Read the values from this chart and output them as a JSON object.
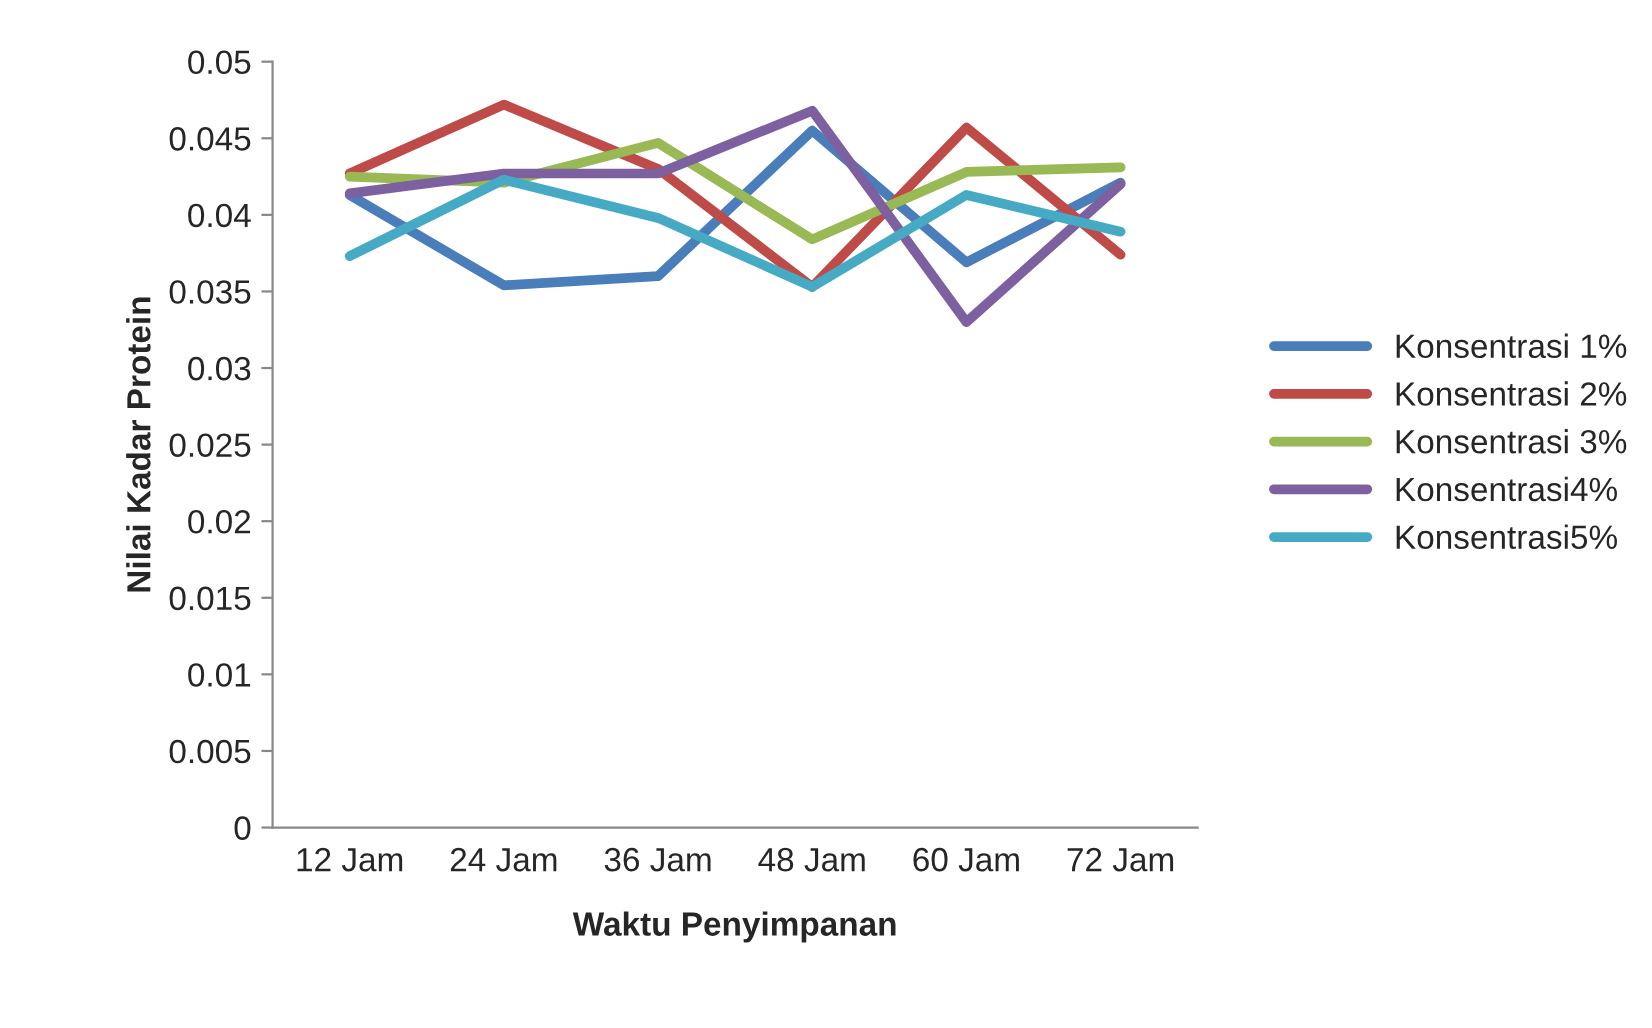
{
  "chart_data": {
    "type": "line",
    "xlabel": "Waktu Penyimpanan",
    "ylabel": "Nilai Kadar Protein",
    "categories": [
      "12 Jam",
      "24 Jam",
      "36 Jam",
      "48 Jam",
      "60 Jam",
      "72 Jam"
    ],
    "series": [
      {
        "name": "Konsentrasi 1%",
        "color": "#4a7ebb",
        "values": [
          0.0413,
          0.0354,
          0.036,
          0.0455,
          0.0369,
          0.0421
        ]
      },
      {
        "name": "Konsentrasi 2%",
        "color": "#be4b48",
        "values": [
          0.0427,
          0.0472,
          0.043,
          0.0353,
          0.0457,
          0.0374
        ]
      },
      {
        "name": "Konsentrasi 3%",
        "color": "#98b954",
        "values": [
          0.0425,
          0.0421,
          0.0447,
          0.0384,
          0.0428,
          0.0431
        ]
      },
      {
        "name": "Konsentrasi4%",
        "color": "#7d60a0",
        "values": [
          0.0414,
          0.0427,
          0.0427,
          0.0468,
          0.033,
          0.042
        ]
      },
      {
        "name": "Konsentrasi5%",
        "color": "#46aac5",
        "values": [
          0.0373,
          0.0423,
          0.0398,
          0.0353,
          0.0413,
          0.0389
        ]
      }
    ],
    "ylim": [
      0,
      0.05
    ],
    "yticks": [
      0,
      {
        "value": 0.005,
        "label": "0.005"
      },
      {
        "value": 0.01,
        "label": "0.01"
      },
      {
        "value": 0.015,
        "label": "0.015"
      },
      {
        "value": 0.02,
        "label": "0.02"
      },
      {
        "value": 0.025,
        "label": "0.025"
      },
      {
        "value": 0.03,
        "label": "0.03"
      },
      {
        "value": 0.035,
        "label": "0.035"
      },
      {
        "value": 0.04,
        "label": "0.04"
      },
      {
        "value": 0.045,
        "label": "0.045"
      },
      {
        "value": 0.05,
        "label": "0.05"
      }
    ],
    "grid": false,
    "legend": "right",
    "marker": "none",
    "line_style": "solid"
  }
}
